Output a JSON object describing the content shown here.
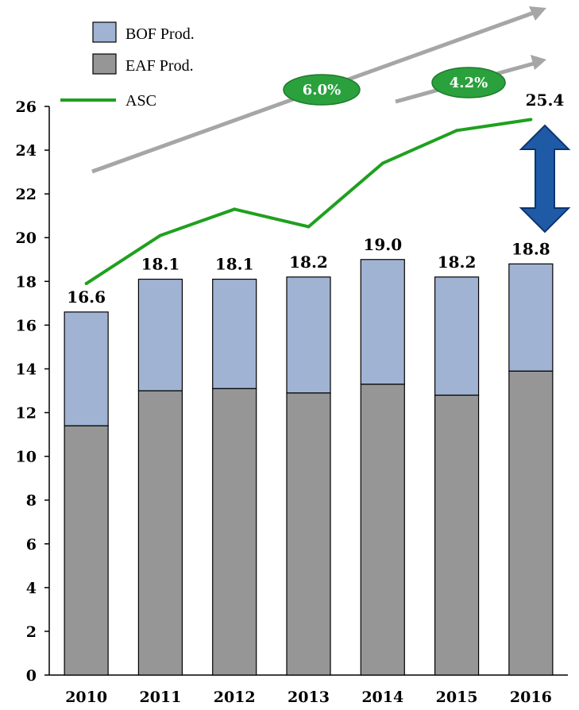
{
  "chart_data": {
    "type": "bar",
    "stacked": true,
    "categories": [
      "2010",
      "2011",
      "2012",
      "2013",
      "2014",
      "2015",
      "2016"
    ],
    "series": [
      {
        "name": "EAF Prod.",
        "kind": "bar",
        "color": "#969696",
        "values": [
          11.4,
          13.0,
          13.1,
          12.9,
          13.3,
          12.8,
          13.9
        ]
      },
      {
        "name": "BOF Prod.",
        "kind": "bar",
        "color": "#a1b3d3",
        "values": [
          5.2,
          5.1,
          5.0,
          5.3,
          5.7,
          5.4,
          4.9
        ]
      },
      {
        "name": "ASC",
        "kind": "line",
        "color": "#1fa01f",
        "values": [
          17.9,
          20.1,
          21.3,
          20.5,
          23.4,
          24.9,
          25.4
        ]
      }
    ],
    "totals": [
      "16.6",
      "18.1",
      "18.1",
      "18.2",
      "19.0",
      "18.2",
      "18.8"
    ],
    "asc_end_label": "25.4",
    "growth_badges": [
      "6.0%",
      "4.2%"
    ],
    "ylim": [
      0,
      26
    ],
    "yticks": [
      "0",
      "2",
      "4",
      "6",
      "8",
      "10",
      "12",
      "14",
      "16",
      "18",
      "20",
      "22",
      "24",
      "26"
    ],
    "legend_position": "top-left",
    "grid": false,
    "colors": {
      "badge": "#2aa13c",
      "arrow": "#a6a6a6",
      "double_arrow": "#1f5aa6"
    }
  }
}
